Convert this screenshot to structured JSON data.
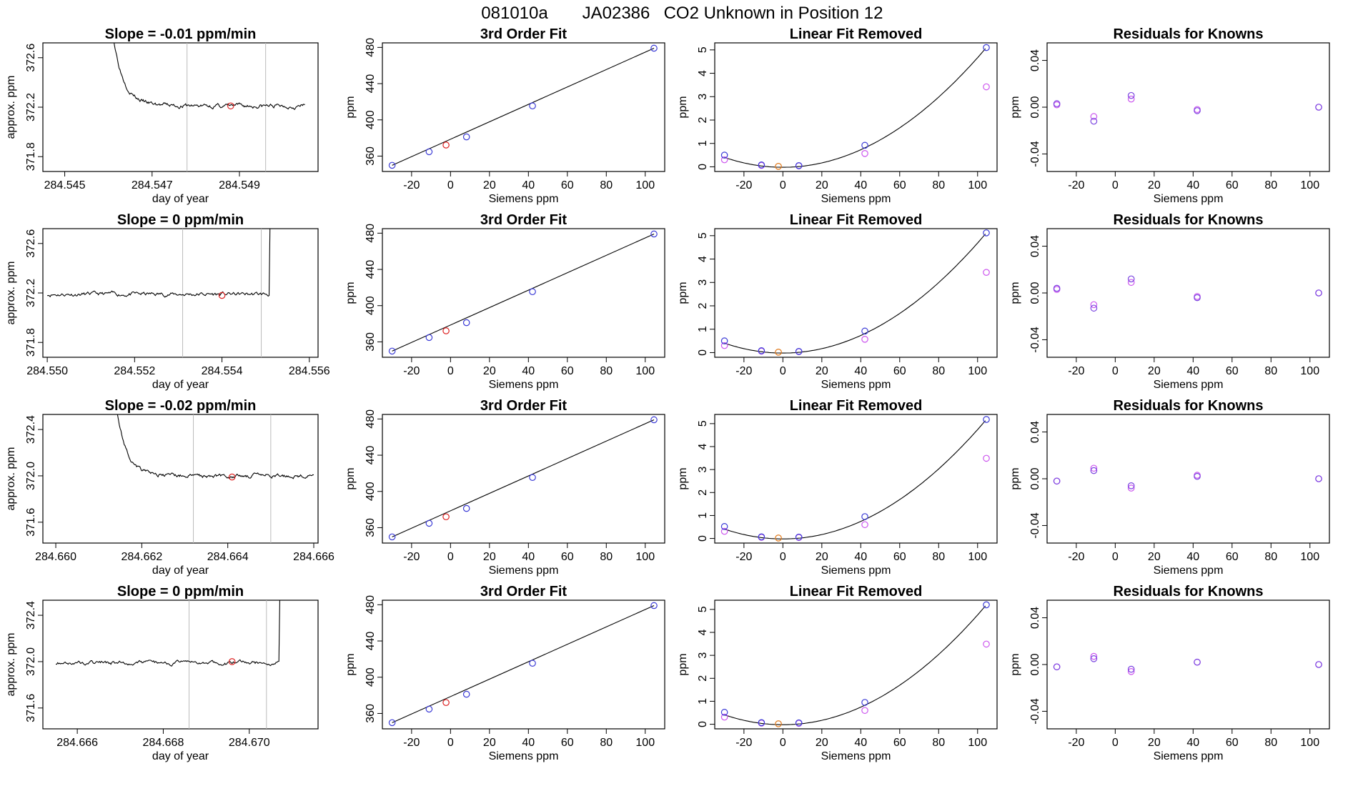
{
  "header": {
    "run_id": "081010a",
    "instrument": "JA02386",
    "description": "CO2 Unknown in Position  12"
  },
  "colors": {
    "known": "#3a3ad6",
    "known_prev": "#cc55ee",
    "unknown": "#dd2222",
    "unknown_lin": "#e07818",
    "line": "#000000",
    "vline": "#bbbbbb",
    "residual": "#7a44e0"
  },
  "chart_data": [
    {
      "type": "line",
      "panel": "trace",
      "row": 0,
      "title": "Slope =  -0.01  ppm/min",
      "xlabel": "day of year",
      "ylabel": "approx. ppm",
      "xlim": [
        284.5445,
        284.5508
      ],
      "ylim": [
        371.68,
        372.72
      ],
      "xticks": [
        "284.545",
        "284.547",
        "284.549"
      ],
      "yticks": [
        "371.8",
        "372.2",
        "372.6"
      ],
      "vlines": [
        284.5478,
        284.5496
      ],
      "x_start": 284.5461,
      "x_end": 284.5505,
      "plateau": 372.21,
      "wobble": 0.015,
      "seed": 3,
      "transient": {
        "type": "decay",
        "start": 372.8,
        "tau": 0.00025
      },
      "marker": {
        "x": 284.5488,
        "y": 372.21
      }
    },
    {
      "type": "scatter",
      "panel": "fit",
      "row": 0,
      "title": "3rd Order Fit",
      "xlabel": "Siemens ppm",
      "ylabel": "ppm",
      "xlim": [
        -35,
        110
      ],
      "ylim": [
        343,
        485
      ],
      "xticks": [
        "-20",
        "0",
        "20",
        "40",
        "60",
        "80",
        "100"
      ],
      "yticks": [
        "360",
        "400",
        "440",
        "480"
      ],
      "points": [
        [
          -30,
          349.8
        ],
        [
          -11,
          364.8
        ],
        [
          8.2,
          381.2
        ],
        [
          42.1,
          415.4
        ],
        [
          104.5,
          479.1
        ]
      ],
      "unknown": [
        -2.3,
        372.2
      ]
    },
    {
      "type": "scatter",
      "panel": "linear",
      "row": 0,
      "title": "Linear Fit Removed",
      "xlabel": "Siemens ppm",
      "ylabel": "ppm",
      "xlim": [
        -35,
        110
      ],
      "ylim": [
        -0.2,
        5.3
      ],
      "xticks": [
        "-20",
        "0",
        "20",
        "40",
        "60",
        "80",
        "100"
      ],
      "yticks": [
        "0",
        "1",
        "2",
        "3",
        "4",
        "5"
      ],
      "points": [
        [
          -30,
          0.5
        ],
        [
          -11,
          0.08
        ],
        [
          8.2,
          0.05
        ],
        [
          42.1,
          0.92
        ],
        [
          104.5,
          5.1
        ]
      ],
      "prev": [
        [
          -30,
          0.3
        ],
        [
          -11,
          0.06
        ],
        [
          8.2,
          0.04
        ],
        [
          42.1,
          0.57
        ],
        [
          104.5,
          3.42
        ]
      ],
      "unknown": [
        -2.3,
        0.02
      ]
    },
    {
      "type": "scatter",
      "panel": "resid",
      "row": 0,
      "title": "Residuals for Knowns",
      "xlabel": "Siemens ppm",
      "ylabel": "ppm",
      "xlim": [
        -35,
        110
      ],
      "ylim": [
        -0.055,
        0.055
      ],
      "xticks": [
        "-20",
        "0",
        "20",
        "40",
        "60",
        "80",
        "100"
      ],
      "yticks": [
        "-0.04",
        "0.00",
        "0.04"
      ],
      "points": [
        [
          -30,
          0.003
        ],
        [
          -11,
          -0.012
        ],
        [
          8.2,
          0.01
        ],
        [
          42.1,
          -0.003
        ],
        [
          104.5,
          0.0
        ]
      ],
      "prev": [
        [
          -30,
          0.002
        ],
        [
          -11,
          -0.008
        ],
        [
          8.2,
          0.007
        ],
        [
          42.1,
          -0.002
        ],
        [
          104.5,
          0.0
        ]
      ]
    },
    {
      "type": "line",
      "panel": "trace",
      "row": 1,
      "title": "Slope =  0  ppm/min",
      "xlabel": "day of year",
      "ylabel": "approx. ppm",
      "xlim": [
        284.5499,
        284.5562
      ],
      "ylim": [
        371.68,
        372.72
      ],
      "xticks": [
        "284.550",
        "284.552",
        "284.554",
        "284.556"
      ],
      "yticks": [
        "371.8",
        "372.2",
        "372.6"
      ],
      "vlines": [
        284.5531,
        284.5549
      ],
      "x_start": 284.55,
      "x_end": 284.5553,
      "plateau": 372.19,
      "wobble": 0.015,
      "seed": 11,
      "transient": {
        "type": "rise",
        "at": 284.5551,
        "to": 372.8
      },
      "marker": {
        "x": 284.554,
        "y": 372.18
      }
    },
    {
      "type": "scatter",
      "panel": "fit",
      "row": 1,
      "title": "3rd Order Fit",
      "xlabel": "Siemens ppm",
      "ylabel": "ppm",
      "xlim": [
        -35,
        110
      ],
      "ylim": [
        343,
        485
      ],
      "xticks": [
        "-20",
        "0",
        "20",
        "40",
        "60",
        "80",
        "100"
      ],
      "yticks": [
        "360",
        "400",
        "440",
        "480"
      ],
      "points": [
        [
          -30,
          349.8
        ],
        [
          -11,
          364.8
        ],
        [
          8.2,
          381.2
        ],
        [
          42.1,
          415.4
        ],
        [
          104.5,
          479.1
        ]
      ],
      "unknown": [
        -2.3,
        372.2
      ]
    },
    {
      "type": "scatter",
      "panel": "linear",
      "row": 1,
      "title": "Linear Fit Removed",
      "xlabel": "Siemens ppm",
      "ylabel": "ppm",
      "xlim": [
        -35,
        110
      ],
      "ylim": [
        -0.2,
        5.3
      ],
      "xticks": [
        "-20",
        "0",
        "20",
        "40",
        "60",
        "80",
        "100"
      ],
      "yticks": [
        "0",
        "1",
        "2",
        "3",
        "4",
        "5"
      ],
      "points": [
        [
          -30,
          0.5
        ],
        [
          -11,
          0.08
        ],
        [
          8.2,
          0.05
        ],
        [
          42.1,
          0.92
        ],
        [
          104.5,
          5.12
        ]
      ],
      "prev": [
        [
          -30,
          0.3
        ],
        [
          -11,
          0.06
        ],
        [
          8.2,
          0.04
        ],
        [
          42.1,
          0.57
        ],
        [
          104.5,
          3.43
        ]
      ],
      "unknown": [
        -2.3,
        0.02
      ]
    },
    {
      "type": "scatter",
      "panel": "resid",
      "row": 1,
      "title": "Residuals for Knowns",
      "xlabel": "Siemens ppm",
      "ylabel": "ppm",
      "xlim": [
        -35,
        110
      ],
      "ylim": [
        -0.055,
        0.055
      ],
      "xticks": [
        "-20",
        "0",
        "20",
        "40",
        "60",
        "80",
        "100"
      ],
      "yticks": [
        "-0.04",
        "0.00",
        "0.04"
      ],
      "points": [
        [
          -30,
          0.004
        ],
        [
          -11,
          -0.013
        ],
        [
          8.2,
          0.012
        ],
        [
          42.1,
          -0.004
        ],
        [
          104.5,
          0.0
        ]
      ],
      "prev": [
        [
          -30,
          0.003
        ],
        [
          -11,
          -0.01
        ],
        [
          8.2,
          0.009
        ],
        [
          42.1,
          -0.003
        ],
        [
          104.5,
          0.0
        ]
      ]
    },
    {
      "type": "line",
      "panel": "trace",
      "row": 2,
      "title": "Slope =  -0.02  ppm/min",
      "xlabel": "day of year",
      "ylabel": "approx. ppm",
      "xlim": [
        284.6597,
        284.6661
      ],
      "ylim": [
        371.42,
        372.53
      ],
      "xticks": [
        "284.660",
        "284.662",
        "284.664",
        "284.666"
      ],
      "yticks": [
        "371.6",
        "372.0",
        "372.4"
      ],
      "vlines": [
        284.6632,
        284.665
      ],
      "x_start": 284.6614,
      "x_end": 284.666,
      "plateau": 372.0,
      "wobble": 0.015,
      "seed": 21,
      "transient": {
        "type": "decay",
        "start": 372.6,
        "tau": 0.00025
      },
      "marker": {
        "x": 284.6641,
        "y": 371.99
      }
    },
    {
      "type": "scatter",
      "panel": "fit",
      "row": 2,
      "title": "3rd Order Fit",
      "xlabel": "Siemens ppm",
      "ylabel": "ppm",
      "xlim": [
        -35,
        110
      ],
      "ylim": [
        343,
        485
      ],
      "xticks": [
        "-20",
        "0",
        "20",
        "40",
        "60",
        "80",
        "100"
      ],
      "yticks": [
        "360",
        "400",
        "440",
        "480"
      ],
      "points": [
        [
          -30,
          349.8
        ],
        [
          -11,
          364.8
        ],
        [
          8.2,
          381.2
        ],
        [
          42.1,
          415.4
        ],
        [
          104.5,
          479.1
        ]
      ],
      "unknown": [
        -2.3,
        372.0
      ]
    },
    {
      "type": "scatter",
      "panel": "linear",
      "row": 2,
      "title": "Linear Fit Removed",
      "xlabel": "Siemens ppm",
      "ylabel": "ppm",
      "xlim": [
        -35,
        110
      ],
      "ylim": [
        -0.2,
        5.4
      ],
      "xticks": [
        "-20",
        "0",
        "20",
        "40",
        "60",
        "80",
        "100"
      ],
      "yticks": [
        "0",
        "1",
        "2",
        "3",
        "4",
        "5"
      ],
      "points": [
        [
          -30,
          0.52
        ],
        [
          -11,
          0.07
        ],
        [
          8.2,
          0.06
        ],
        [
          42.1,
          0.95
        ],
        [
          104.5,
          5.18
        ]
      ],
      "prev": [
        [
          -30,
          0.31
        ],
        [
          -11,
          0.05
        ],
        [
          8.2,
          0.04
        ],
        [
          42.1,
          0.6
        ],
        [
          104.5,
          3.49
        ]
      ],
      "unknown": [
        -2.3,
        0.02
      ]
    },
    {
      "type": "scatter",
      "panel": "resid",
      "row": 2,
      "title": "Residuals for Knowns",
      "xlabel": "Siemens ppm",
      "ylabel": "ppm",
      "xlim": [
        -35,
        110
      ],
      "ylim": [
        -0.055,
        0.055
      ],
      "xticks": [
        "-20",
        "0",
        "20",
        "40",
        "60",
        "80",
        "100"
      ],
      "yticks": [
        "-0.04",
        "0.00",
        "0.04"
      ],
      "points": [
        [
          -30,
          -0.002
        ],
        [
          -11,
          0.007
        ],
        [
          8.2,
          -0.006
        ],
        [
          42.1,
          0.002
        ],
        [
          104.5,
          0.0
        ]
      ],
      "prev": [
        [
          -30,
          -0.002
        ],
        [
          -11,
          0.009
        ],
        [
          8.2,
          -0.008
        ],
        [
          42.1,
          0.003
        ],
        [
          104.5,
          0.0
        ]
      ]
    },
    {
      "type": "line",
      "panel": "trace",
      "row": 3,
      "title": "Slope =  0  ppm/min",
      "xlabel": "day of year",
      "ylabel": "approx. ppm",
      "xlim": [
        284.6652,
        284.6716
      ],
      "ylim": [
        371.42,
        372.53
      ],
      "xticks": [
        "284.666",
        "284.668",
        "284.670"
      ],
      "yticks": [
        "371.6",
        "372.0",
        "372.4"
      ],
      "vlines": [
        284.6686,
        284.6704
      ],
      "x_start": 284.6655,
      "x_end": 284.6708,
      "plateau": 371.99,
      "wobble": 0.015,
      "seed": 33,
      "transient": {
        "type": "rise",
        "at": 284.6707,
        "to": 372.6
      },
      "marker": {
        "x": 284.6696,
        "y": 372.0
      }
    },
    {
      "type": "scatter",
      "panel": "fit",
      "row": 3,
      "title": "3rd Order Fit",
      "xlabel": "Siemens ppm",
      "ylabel": "ppm",
      "xlim": [
        -35,
        110
      ],
      "ylim": [
        343,
        485
      ],
      "xticks": [
        "-20",
        "0",
        "20",
        "40",
        "60",
        "80",
        "100"
      ],
      "yticks": [
        "360",
        "400",
        "440",
        "480"
      ],
      "points": [
        [
          -30,
          349.8
        ],
        [
          -11,
          364.8
        ],
        [
          8.2,
          381.2
        ],
        [
          42.1,
          415.4
        ],
        [
          104.5,
          479.1
        ]
      ],
      "unknown": [
        -2.3,
        372.0
      ]
    },
    {
      "type": "scatter",
      "panel": "linear",
      "row": 3,
      "title": "Linear Fit Removed",
      "xlabel": "Siemens ppm",
      "ylabel": "ppm",
      "xlim": [
        -35,
        110
      ],
      "ylim": [
        -0.2,
        5.4
      ],
      "xticks": [
        "-20",
        "0",
        "20",
        "40",
        "60",
        "80",
        "100"
      ],
      "yticks": [
        "0",
        "1",
        "2",
        "3",
        "4",
        "5"
      ],
      "points": [
        [
          -30,
          0.52
        ],
        [
          -11,
          0.07
        ],
        [
          8.2,
          0.06
        ],
        [
          42.1,
          0.95
        ],
        [
          104.5,
          5.2
        ]
      ],
      "prev": [
        [
          -30,
          0.31
        ],
        [
          -11,
          0.05
        ],
        [
          8.2,
          0.04
        ],
        [
          42.1,
          0.6
        ],
        [
          104.5,
          3.49
        ]
      ],
      "unknown": [
        -2.3,
        0.02
      ]
    },
    {
      "type": "scatter",
      "panel": "resid",
      "row": 3,
      "title": "Residuals for Knowns",
      "xlabel": "Siemens ppm",
      "ylabel": "ppm",
      "xlim": [
        -35,
        110
      ],
      "ylim": [
        -0.055,
        0.055
      ],
      "xticks": [
        "-20",
        "0",
        "20",
        "40",
        "60",
        "80",
        "100"
      ],
      "yticks": [
        "-0.04",
        "0.00",
        "0.04"
      ],
      "points": [
        [
          -30,
          -0.002
        ],
        [
          -11,
          0.005
        ],
        [
          8.2,
          -0.004
        ],
        [
          42.1,
          0.002
        ],
        [
          104.5,
          0.0
        ]
      ],
      "prev": [
        [
          -30,
          -0.002
        ],
        [
          -11,
          0.007
        ],
        [
          8.2,
          -0.006
        ],
        [
          42.1,
          0.002
        ],
        [
          104.5,
          0.0
        ]
      ]
    }
  ]
}
